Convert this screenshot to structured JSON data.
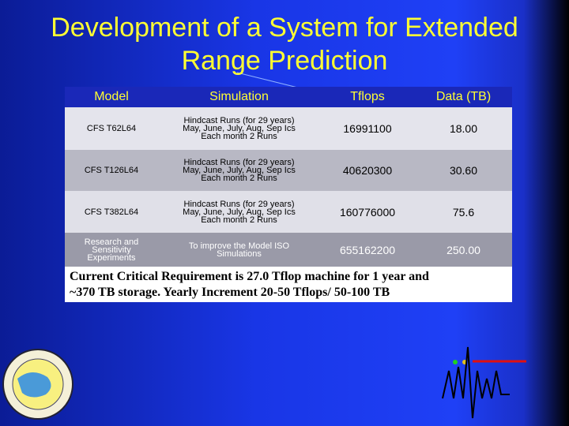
{
  "title": [
    "Development of a System for Extended",
    "Range Prediction"
  ],
  "table": {
    "header": [
      "Model",
      "Simulation",
      "Tflops",
      "Data (TB)"
    ],
    "rows": [
      [
        [
          "CFS T62L64"
        ],
        [
          "Hindcast Runs (for 29 years)",
          "May, June, July, Aug, Sep Ics",
          "Each month 2 Runs"
        ],
        [
          "16991100"
        ],
        [
          "18.00"
        ]
      ],
      [
        [
          "CFS T126L64"
        ],
        [
          "Hindcast Runs (for 29 years)",
          "May, June, July, Aug, Sep Ics",
          "Each month 2 Runs"
        ],
        [
          "40620300"
        ],
        [
          "30.60"
        ]
      ],
      [
        [
          "CFS T382L64"
        ],
        [
          "Hindcast Runs (for 29 years)",
          "May, June, July, Aug, Sep Ics",
          "Each month 2 Runs"
        ],
        [
          "160776000"
        ],
        [
          "75.6"
        ]
      ],
      [
        [
          "Research and",
          "Sensitivity",
          "Experiments"
        ],
        [
          "To improve the Model ISO",
          "Simulations"
        ],
        [
          "655162200"
        ],
        [
          "250.00"
        ]
      ]
    ]
  },
  "note": [
    "Current  Critical Requirement is  27.0 Tflop machine for 1 year and",
    "~370 TB storage. Yearly Increment 20-50 Tflops/ 50-100 TB"
  ]
}
